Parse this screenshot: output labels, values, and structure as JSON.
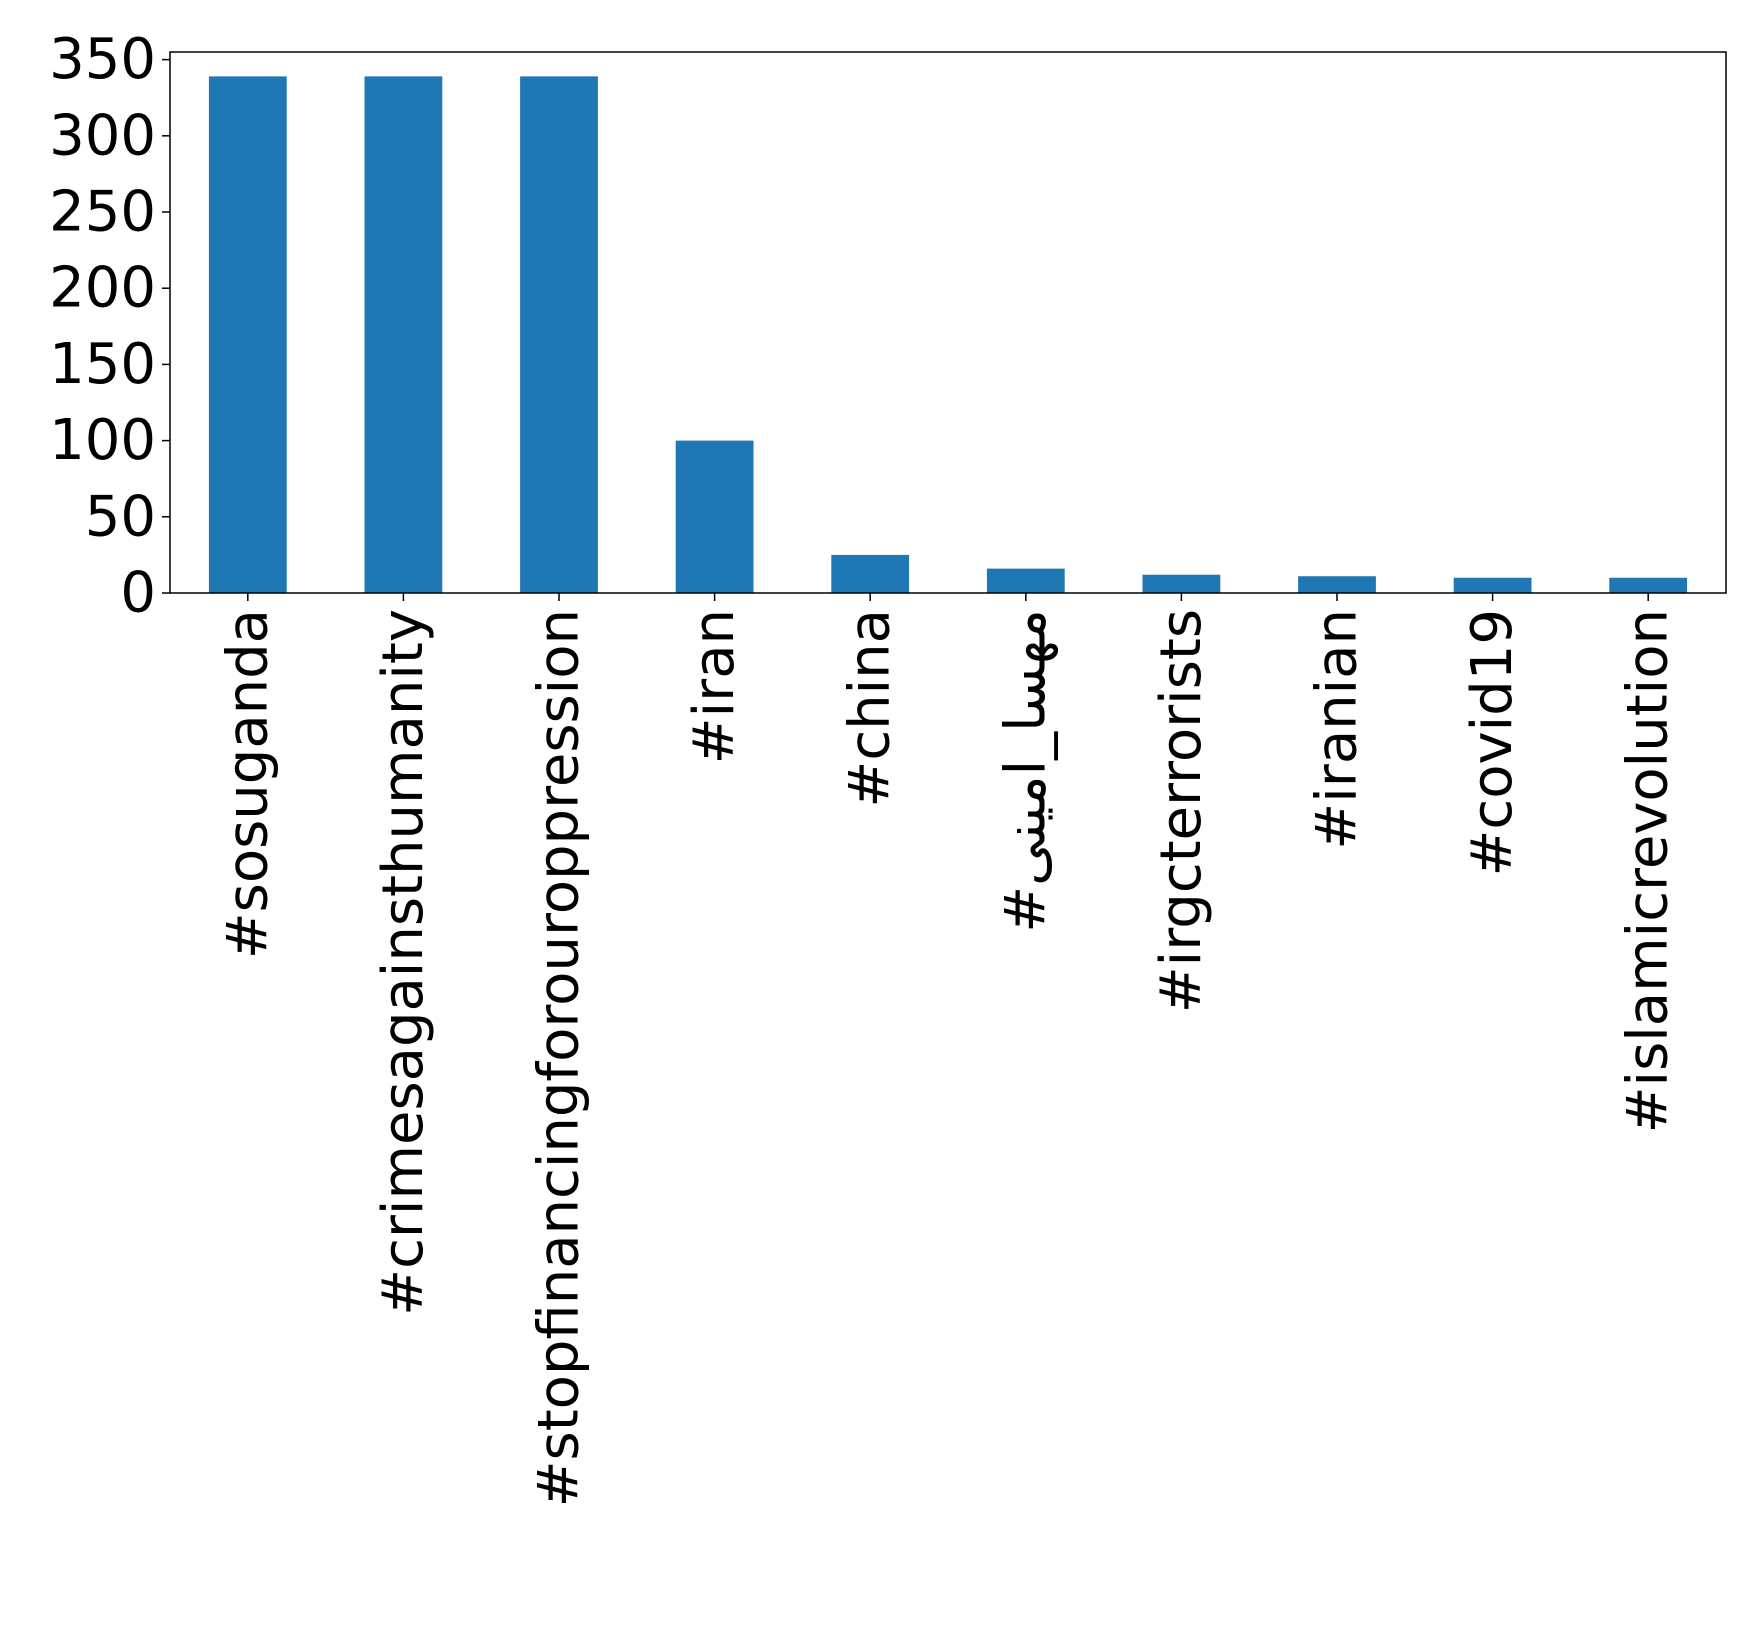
{
  "chart_data": {
    "type": "bar",
    "title": "",
    "xlabel": "",
    "ylabel": "",
    "categories": [
      "#sosuganda",
      "#crimesagainsthumanity",
      "#stopfinancingforouroppression",
      "#iran",
      "#china",
      "#مهسا_امینی",
      "#irgcterrorists",
      "#iranian",
      "#covid19",
      "#islamicrevolution"
    ],
    "values": [
      339,
      339,
      339,
      100,
      25,
      16,
      12,
      11,
      10,
      10
    ],
    "ylim": [
      0,
      355
    ],
    "yticks": [
      0,
      50,
      100,
      150,
      200,
      250,
      300,
      350
    ],
    "bar_color": "#1f77b4",
    "grid": false,
    "legend": "none"
  }
}
